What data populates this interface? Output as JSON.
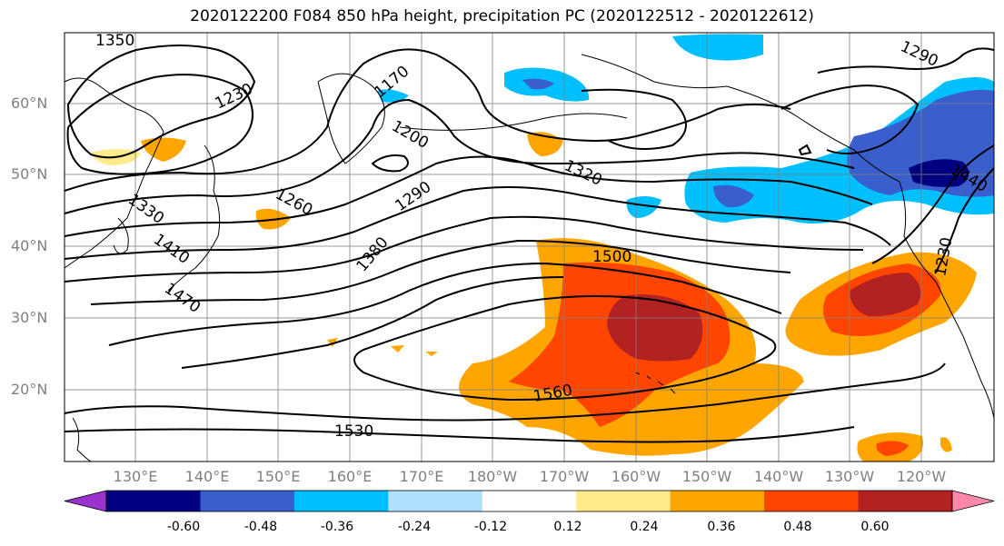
{
  "title": "2020122200 F084 850 hPa height, precipitation PC (2020122512 - 2020122612)",
  "lat_labels": [
    "60°N",
    "50°N",
    "40°N",
    "30°N",
    "20°N"
  ],
  "lon_labels": [
    "130°E",
    "140°E",
    "150°E",
    "160°E",
    "170°E",
    "180°W",
    "170°W",
    "160°W",
    "150°W",
    "140°W",
    "130°W",
    "120°W"
  ],
  "contour_labels": [
    "1350",
    "1230",
    "1170",
    "1200",
    "1290",
    "1320",
    "1440",
    "1330",
    "1410",
    "1470",
    "1260",
    "1290",
    "1380",
    "1500",
    "1230",
    "1560",
    "1530"
  ],
  "colorbar": {
    "ticks": [
      "-0.60",
      "-0.48",
      "-0.36",
      "-0.24",
      "-0.12",
      "0.12",
      "0.24",
      "0.36",
      "0.48",
      "0.60"
    ],
    "colors": [
      "#9933cc",
      "#000080",
      "#3a5fcd",
      "#00bfff",
      "#b0e2ff",
      "#ffffff",
      "#ffeb8c",
      "#ffa500",
      "#ff4500",
      "#b22222",
      "#ff88aa"
    ]
  }
}
